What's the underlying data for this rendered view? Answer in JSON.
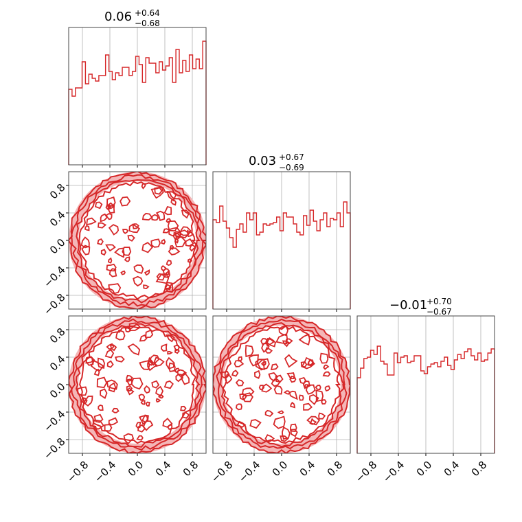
{
  "chart_data": {
    "type": "corner",
    "colors": {
      "series": "#d62728",
      "fill": "#f4b6b7",
      "grid": "#b0b0b0"
    },
    "grid": true,
    "axis_range": [
      -1.0,
      1.0
    ],
    "tick_values": [
      -0.8,
      -0.4,
      0.0,
      0.4,
      0.8
    ],
    "tick_labels": [
      "−0.8",
      "−0.4",
      "0.0",
      "0.4",
      "0.8"
    ],
    "parameters": [
      {
        "title": {
          "value": "0.06",
          "plus": "+0.64",
          "minus": "−0.68"
        },
        "histogram": [
          0.55,
          0.5,
          0.56,
          0.56,
          0.75,
          0.59,
          0.66,
          0.63,
          0.61,
          0.65,
          0.65,
          0.8,
          0.68,
          0.62,
          0.67,
          0.65,
          0.71,
          0.71,
          0.65,
          0.68,
          0.79,
          0.73,
          0.6,
          0.78,
          0.74,
          0.74,
          0.67,
          0.75,
          0.69,
          0.72,
          0.78,
          0.6,
          0.84,
          0.67,
          0.76,
          0.68,
          0.8,
          0.7,
          0.77,
          0.7,
          0.9
        ]
      },
      {
        "title": {
          "value": "0.03",
          "plus": "+0.67",
          "minus": "−0.69"
        },
        "histogram": [
          0.65,
          0.63,
          0.75,
          0.64,
          0.59,
          0.52,
          0.45,
          0.58,
          0.62,
          0.56,
          0.7,
          0.65,
          0.7,
          0.54,
          0.56,
          0.62,
          0.61,
          0.62,
          0.63,
          0.67,
          0.57,
          0.7,
          0.67,
          0.67,
          0.62,
          0.56,
          0.54,
          0.68,
          0.61,
          0.72,
          0.64,
          0.57,
          0.65,
          0.7,
          0.6,
          0.66,
          0.65,
          0.7,
          0.6,
          0.78,
          0.7
        ]
      },
      {
        "title": {
          "value": "−0.01",
          "plus": "+0.70",
          "minus": "−0.67"
        },
        "histogram": [
          0.55,
          0.62,
          0.69,
          0.7,
          0.75,
          0.72,
          0.78,
          0.67,
          0.65,
          0.57,
          0.57,
          0.73,
          0.66,
          0.7,
          0.71,
          0.66,
          0.67,
          0.71,
          0.71,
          0.6,
          0.58,
          0.63,
          0.65,
          0.66,
          0.63,
          0.67,
          0.7,
          0.64,
          0.61,
          0.68,
          0.72,
          0.69,
          0.74,
          0.76,
          0.71,
          0.68,
          0.73,
          0.67,
          0.68,
          0.73,
          0.76
        ]
      }
    ],
    "pairs": [
      {
        "row": 1,
        "col": 0,
        "shape": "uniform disk",
        "radius": 1.0
      },
      {
        "row": 2,
        "col": 0,
        "shape": "uniform disk",
        "radius": 1.0
      },
      {
        "row": 2,
        "col": 1,
        "shape": "uniform disk",
        "radius": 1.0
      }
    ]
  }
}
